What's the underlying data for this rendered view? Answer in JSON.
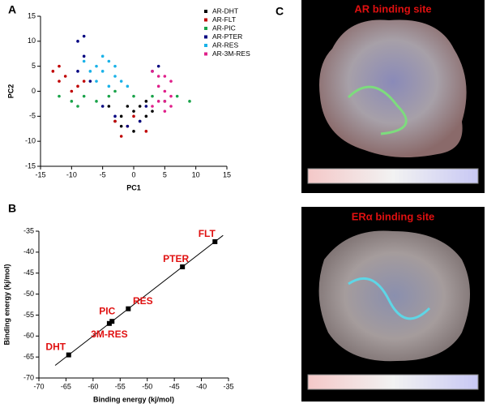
{
  "panel_labels": [
    "A",
    "B",
    "C"
  ],
  "chart_data": [
    {
      "type": "scatter",
      "xlabel": "PC1",
      "ylabel": "PC2",
      "xlim": [
        -15,
        15
      ],
      "xticks": [
        -15,
        -10,
        -5,
        0,
        5,
        10,
        15
      ],
      "ylim": [
        -15,
        15
      ],
      "yticks": [
        -15,
        -10,
        -5,
        0,
        5,
        10,
        15
      ],
      "series": [
        {
          "name": "AR-DHT",
          "color": "#000000",
          "x": [
            -4,
            -2,
            0,
            1,
            2,
            3,
            -1,
            -3,
            0,
            2,
            1,
            -2
          ],
          "values": [
            -3,
            -5,
            -4,
            -6,
            -5,
            -4,
            -3,
            -6,
            -8,
            -2,
            -3,
            -7
          ]
        },
        {
          "name": "AR-FLT",
          "color": "#c00000",
          "x": [
            -13,
            -12,
            -10,
            -11,
            -9,
            -3,
            -1,
            0,
            2,
            -2,
            -8,
            -12
          ],
          "values": [
            4,
            2,
            0,
            3,
            1,
            -6,
            -7,
            -5,
            -8,
            -9,
            2,
            5
          ]
        },
        {
          "name": "AR-PIC",
          "color": "#1aa34a",
          "x": [
            -12,
            -10,
            -8,
            -6,
            -4,
            0,
            3,
            5,
            7,
            9,
            -9,
            -3
          ],
          "values": [
            -1,
            -2,
            -1,
            -2,
            -1,
            -1,
            -1,
            -2,
            -1,
            -2,
            -3,
            0
          ]
        },
        {
          "name": "AR-PTER",
          "color": "#000080",
          "x": [
            -9,
            -8,
            -8,
            -9,
            -7,
            -5,
            -3,
            -1,
            1,
            3,
            4,
            2
          ],
          "values": [
            10,
            11,
            7,
            4,
            2,
            -3,
            -5,
            -7,
            -6,
            4,
            5,
            -3
          ]
        },
        {
          "name": "AR-RES",
          "color": "#1ab2e8",
          "x": [
            -8,
            -6,
            -5,
            -4,
            -3,
            -6,
            -2,
            -4,
            -7,
            -3,
            -5,
            -1
          ],
          "values": [
            6,
            5,
            4,
            6,
            3,
            2,
            2,
            1,
            4,
            5,
            7,
            1
          ]
        },
        {
          "name": "AR-3M-RES",
          "color": "#e0208a",
          "x": [
            3,
            4,
            5,
            6,
            4,
            5,
            6,
            3,
            5,
            6,
            4,
            5
          ],
          "values": [
            4,
            1,
            0,
            2,
            -2,
            -4,
            -1,
            -3,
            3,
            -3,
            3,
            -2
          ]
        }
      ]
    },
    {
      "type": "scatter",
      "xlabel": "Binding energy (kj/mol)",
      "ylabel": "Binding energy (kj/mol)",
      "xlim": [
        -70,
        -35
      ],
      "xticks": [
        -70,
        -65,
        -60,
        -55,
        -50,
        -45,
        -40,
        -35
      ],
      "ylim": [
        -70,
        -35
      ],
      "yticks": [
        -70,
        -65,
        -60,
        -55,
        -50,
        -45,
        -40,
        -35
      ],
      "categories": [
        "DHT",
        "3M-RES",
        "PIC",
        "RES",
        "PTER",
        "FLT"
      ],
      "label_color": "#e01010",
      "color": "#000000",
      "x": [
        -64.5,
        -57,
        -56.5,
        -53.5,
        -43.5,
        -37.5
      ],
      "values": [
        -64.5,
        -57,
        -56.5,
        -53.5,
        -43.5,
        -37.5
      ],
      "fit_line": {
        "x": [
          -67,
          -36
        ],
        "values": [
          -67,
          -36
        ]
      }
    }
  ],
  "structures": [
    {
      "title": "AR binding site"
    },
    {
      "title": "ERα binding site"
    }
  ]
}
